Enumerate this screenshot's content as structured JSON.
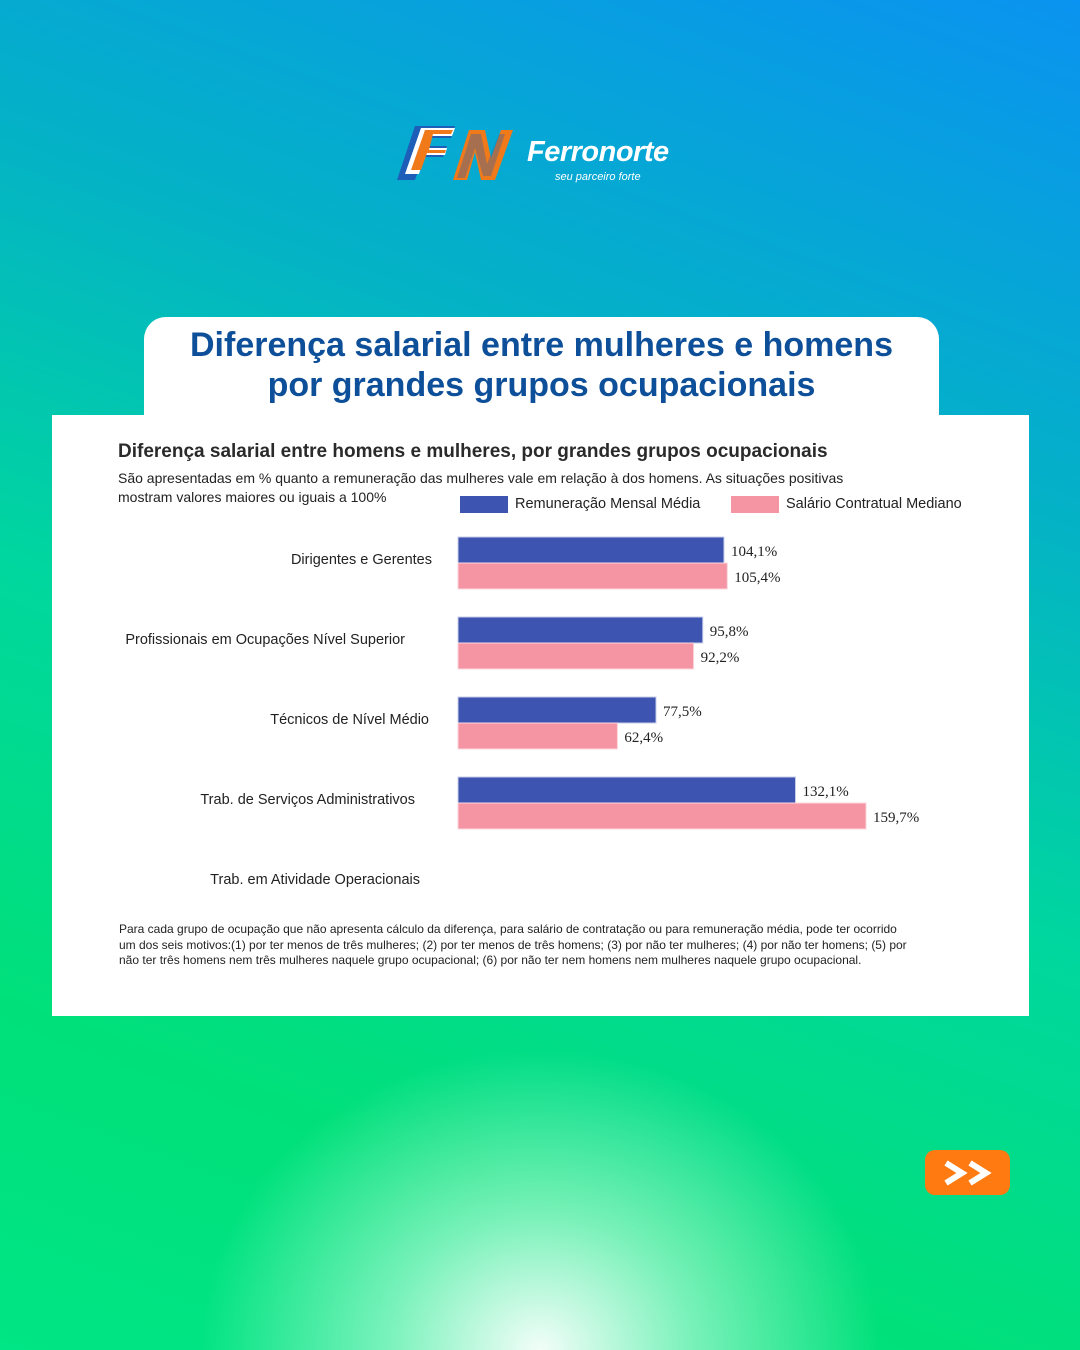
{
  "brand": {
    "name": "Ferronorte",
    "tagline": "seu parceiro forte",
    "colors": {
      "blue": "#1d5fb8",
      "orange": "#f07a1a"
    }
  },
  "header": {
    "title_line1": "Diferença salarial entre mulheres e homens",
    "title_line2": "por grandes grupos ocupacionais"
  },
  "chart_data": {
    "type": "bar",
    "orientation": "horizontal",
    "title": "Diferença salarial entre homens e mulheres, por grandes grupos ocupacionais",
    "subtitle": "São apresentadas em % quanto a remuneração das mulheres vale em relação à dos homens. As situações positivas mostram valores maiores ou iguais a 100%",
    "categories": [
      "Dirigentes e Gerentes",
      "Profissionais em Ocupações Nível Superior",
      "Técnicos de Nível Médio",
      "Trab. de Serviços Administrativos",
      "Trab. em Atividade Operacionais"
    ],
    "series": [
      {
        "name": "Remuneração Mensal Média",
        "color": "#3d55b0",
        "values": [
          104.1,
          95.8,
          77.5,
          132.1,
          null
        ],
        "labels": [
          "104,1%",
          "95,8%",
          "77,5%",
          "132,1%",
          ""
        ]
      },
      {
        "name": "Salário Contratual Mediano",
        "color": "#f595a4",
        "values": [
          105.4,
          92.2,
          62.4,
          159.7,
          null
        ],
        "labels": [
          "105,4%",
          "92,2%",
          "62,4%",
          "159,7%",
          ""
        ]
      }
    ],
    "legend_position": "top-right",
    "grid": false,
    "axes_visible": false,
    "footnote": "Para cada grupo de ocupação que não apresenta cálculo da diferença, para salário de contratação ou para remuneração média, pode ter ocorrido um dos seis motivos:(1) por ter menos de três mulheres; (2) por ter menos de três homens; (3) por não ter mulheres; (4) por não ter homens; (5) por não ter três homens nem três mulheres naquele grupo ocupacional; (6) por não ter nem homens nem mulheres naquele grupo ocupacional."
  },
  "nav": {
    "next_label": ">>",
    "next_color": "#ff7b12"
  },
  "icons": {
    "logo": "ferronorte-fn-logo-icon",
    "next": "double-chevron-right-icon"
  }
}
